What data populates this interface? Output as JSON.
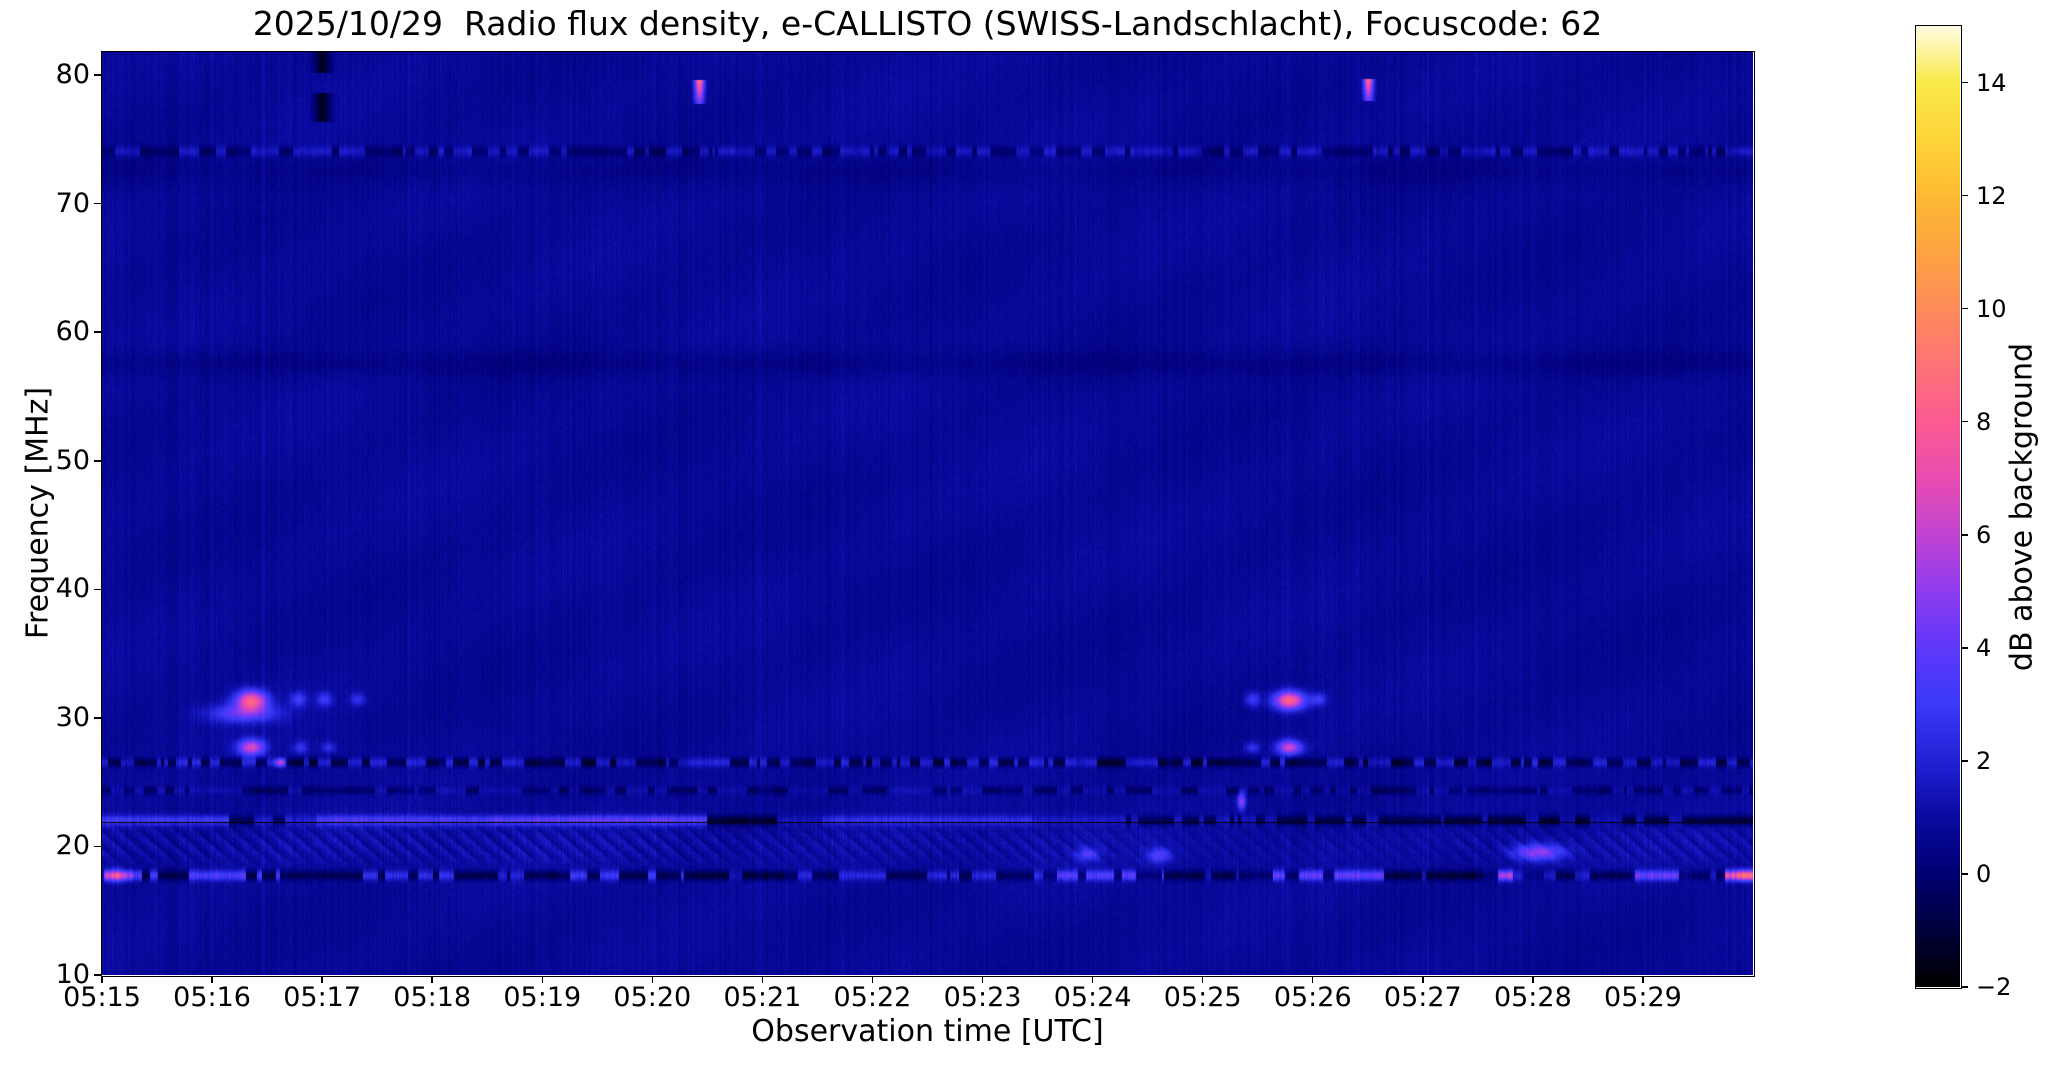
{
  "title": "2025/10/29  Radio flux density, e-CALLISTO (SWISS-Landschlacht), Focuscode: 62",
  "chart_data": {
    "type": "heatmap",
    "title": "2025/10/29  Radio flux density, e-CALLISTO (SWISS-Landschlacht), Focuscode: 62",
    "xlabel": "Observation time [UTC]",
    "ylabel": "Frequency [MHz]",
    "colorbar_label": "dB above background",
    "x_ticks": [
      "05:15",
      "05:16",
      "05:17",
      "05:18",
      "05:19",
      "05:20",
      "05:21",
      "05:22",
      "05:23",
      "05:24",
      "05:25",
      "05:26",
      "05:27",
      "05:28",
      "05:29"
    ],
    "x_range_minutes": [
      0,
      15
    ],
    "x_start_time": "05:15",
    "y_ticks": [
      80,
      70,
      60,
      50,
      40,
      30,
      20,
      10
    ],
    "y_range_mhz": [
      10,
      81.8
    ],
    "colorbar_ticks": [
      14,
      12,
      10,
      8,
      6,
      4,
      2,
      0,
      -2
    ],
    "colorbar_range_db": [
      -2,
      15
    ],
    "grid": false,
    "legend": "colorbar-right",
    "colormap_stops": [
      [
        -2,
        "#000000"
      ],
      [
        -1,
        "#00003c"
      ],
      [
        0,
        "#000074"
      ],
      [
        1,
        "#0b0ba2"
      ],
      [
        2,
        "#2222d6"
      ],
      [
        3,
        "#3a3af8"
      ],
      [
        4,
        "#6038fa"
      ],
      [
        5,
        "#8f3cf0"
      ],
      [
        6,
        "#c244d2"
      ],
      [
        7,
        "#e94cb0"
      ],
      [
        8,
        "#fb5b92"
      ],
      [
        9,
        "#fd7376"
      ],
      [
        10,
        "#fd8c5a"
      ],
      [
        11,
        "#fda342"
      ],
      [
        12,
        "#fdba32"
      ],
      [
        13,
        "#fdd438"
      ],
      [
        14,
        "#f9ea4a"
      ],
      [
        15,
        "#fffbe2"
      ]
    ],
    "background_db": {
      "column_base": 0.55,
      "column_spread": 0.5,
      "pixel_noise": 0.5
    },
    "notable_features": [
      "Bright narrow emission spike ~78-79 MHz at 05:20.4 (~9 dB, pink)",
      "Bright narrow emission spike ~78-79 MHz at 05:26.5 (~9 dB, pink)",
      "Interference blobs at 31.4 MHz and 27.7 MHz near 05:16.3 (~7-8 dB)",
      "Interference blobs at 31.4 MHz and 27.7 MHz near 05:25.8 (~7-8 dB)",
      "Dark dropout column near 05:17 above 76 MHz (~-2 dB)",
      "Bright drifting carrier line at ~22 MHz from 05:15 to 05:20.5, dark dashed 05:24-05:30",
      "Busy dashed RFI band at ~17.8 MHz across whole record, brightest pink at far right ~05:29.9",
      "Dashed texture band at ~74 MHz across whole record",
      "Diagonal chevron fading pattern between 18.4 and 21.9 MHz"
    ],
    "features": {
      "bands": [
        {
          "f": 74.1,
          "h": 0.5,
          "style": "dash",
          "bright": 0.9,
          "dark": -0.9
        },
        {
          "f": 72.6,
          "h": 1.4,
          "style": "smooth",
          "amp": -0.3
        },
        {
          "f": 57.6,
          "h": 1.3,
          "style": "smooth",
          "amp": -0.4
        },
        {
          "f": 26.6,
          "h": 0.45,
          "style": "dash",
          "bright": 1.1,
          "dark": -1.6
        },
        {
          "f": 24.4,
          "h": 0.4,
          "style": "dash",
          "bright": 0.4,
          "dark": -1.0
        },
        {
          "f": 20.0,
          "h": 3.5,
          "style": "smooth",
          "amp": 0.22
        }
      ],
      "chevrons": {
        "f_top": 21.9,
        "f_bot": 18.4,
        "spacing_px": 19,
        "slope": 1.15,
        "regions": [
          {
            "t0": 0,
            "t1": 5.6,
            "amp": 0.5
          },
          {
            "t0": 5.6,
            "t1": 9.2,
            "amp": 0.38
          },
          {
            "t0": 9.2,
            "t1": 12.3,
            "amp": 0.22
          },
          {
            "t0": 12.3,
            "t1": 15,
            "amp": 0.4
          }
        ]
      },
      "lines": [
        {
          "f": 22.05,
          "h": 0.5,
          "segments": [
            {
              "t0": 0.0,
              "t1": 1.15,
              "v": 2.4,
              "style": "solid"
            },
            {
              "t0": 1.15,
              "t1": 1.95,
              "v": 1.0,
              "style": "dashmix",
              "dark": -1.2
            },
            {
              "t0": 1.95,
              "t1": 3.55,
              "v": 2.6,
              "style": "solid"
            },
            {
              "t0": 3.55,
              "t1": 5.5,
              "v": 3.0,
              "style": "solid"
            },
            {
              "t0": 5.5,
              "t1": 6.15,
              "v": -1.8,
              "style": "dashdark",
              "bright": 0.5
            },
            {
              "t0": 6.15,
              "t1": 6.55,
              "v": 0.7,
              "style": "solid"
            },
            {
              "t0": 6.55,
              "t1": 8.45,
              "v": 1.6,
              "style": "solid"
            },
            {
              "t0": 8.45,
              "t1": 9.3,
              "v": 0.8,
              "style": "solid"
            },
            {
              "t0": 9.3,
              "t1": 12.2,
              "v": -1.5,
              "style": "dashdark",
              "bright": 0.6
            },
            {
              "t0": 12.2,
              "t1": 15.0,
              "v": -1.9,
              "style": "dashdark",
              "bright": 0.3
            }
          ]
        },
        {
          "f": 17.75,
          "h": 0.5,
          "segments": [
            {
              "t0": 0.02,
              "t1": 0.28,
              "v": 4.5,
              "style": "solid"
            },
            {
              "t0": 0.28,
              "t1": 1.65,
              "v": 2.6,
              "style": "dashmix",
              "dark": -1.6
            },
            {
              "t0": 1.65,
              "t1": 3.2,
              "v": 1.7,
              "style": "dashmix",
              "dark": -1.4
            },
            {
              "t0": 3.2,
              "t1": 4.15,
              "v": -1.7,
              "style": "dashdark",
              "bright": 0.9
            },
            {
              "t0": 4.15,
              "t1": 5.35,
              "v": 2.0,
              "style": "dashmix",
              "dark": -1.5
            },
            {
              "t0": 5.35,
              "t1": 6.2,
              "v": -1.8,
              "style": "dashdark",
              "bright": 0.4
            },
            {
              "t0": 6.2,
              "t1": 8.55,
              "v": 1.4,
              "style": "dashmix",
              "dark": -1.3
            },
            {
              "t0": 8.55,
              "t1": 9.65,
              "v": 2.8,
              "style": "dashmix",
              "dark": -0.8
            },
            {
              "t0": 9.65,
              "t1": 10.35,
              "v": -1.6,
              "style": "dashdark",
              "bright": 0.5
            },
            {
              "t0": 10.35,
              "t1": 11.65,
              "v": 3.1,
              "style": "dashmix",
              "dark": -1.0
            },
            {
              "t0": 11.65,
              "t1": 12.55,
              "v": -1.7,
              "style": "dashdark",
              "bright": 0.6
            },
            {
              "t0": 12.55,
              "t1": 13.1,
              "v": 4.4,
              "style": "dashmix",
              "dark": -0.5
            },
            {
              "t0": 13.1,
              "t1": 13.9,
              "v": -1.5,
              "style": "dashdark",
              "bright": 0.8
            },
            {
              "t0": 13.9,
              "t1": 14.45,
              "v": 3.3,
              "style": "dashmix",
              "dark": -0.6
            },
            {
              "t0": 14.45,
              "t1": 14.75,
              "v": -1.2,
              "style": "dashdark",
              "bright": 0.6
            },
            {
              "t0": 14.75,
              "t1": 15.0,
              "v": 6.0,
              "style": "solid"
            }
          ]
        }
      ],
      "blobs": [
        {
          "t": 1.35,
          "f": 31.4,
          "v": 7.2,
          "rt": 0.1,
          "rf": 0.55
        },
        {
          "t": 1.35,
          "f": 27.7,
          "v": 5.8,
          "rt": 0.085,
          "rf": 0.45
        },
        {
          "t": 1.28,
          "f": 30.35,
          "v": 3.2,
          "rt": 0.22,
          "rf": 0.5
        },
        {
          "t": 1.78,
          "f": 31.45,
          "v": 2.4,
          "rt": 0.05,
          "rf": 0.4
        },
        {
          "t": 2.02,
          "f": 31.45,
          "v": 2.2,
          "rt": 0.05,
          "rf": 0.4
        },
        {
          "t": 2.32,
          "f": 31.45,
          "v": 1.9,
          "rt": 0.05,
          "rf": 0.35
        },
        {
          "t": 1.8,
          "f": 27.7,
          "v": 1.9,
          "rt": 0.05,
          "rf": 0.35
        },
        {
          "t": 2.05,
          "f": 27.7,
          "v": 1.7,
          "rt": 0.05,
          "rf": 0.3
        },
        {
          "t": 1.62,
          "f": 26.55,
          "v": 4.5,
          "rt": 0.035,
          "rf": 0.22
        },
        {
          "t": 10.78,
          "f": 31.4,
          "v": 7.6,
          "rt": 0.1,
          "rf": 0.5
        },
        {
          "t": 10.78,
          "f": 27.7,
          "v": 5.5,
          "rt": 0.08,
          "rf": 0.4
        },
        {
          "t": 10.45,
          "f": 31.45,
          "v": 2.4,
          "rt": 0.05,
          "rf": 0.4
        },
        {
          "t": 11.05,
          "f": 31.45,
          "v": 2.2,
          "rt": 0.05,
          "rf": 0.35
        },
        {
          "t": 10.45,
          "f": 27.7,
          "v": 1.9,
          "rt": 0.05,
          "rf": 0.3
        },
        {
          "t": 8.95,
          "f": 19.45,
          "v": 2.4,
          "rt": 0.07,
          "rf": 0.35
        },
        {
          "t": 9.6,
          "f": 19.3,
          "v": 2.8,
          "rt": 0.07,
          "rf": 0.4
        },
        {
          "t": 13.05,
          "f": 19.55,
          "v": 4.2,
          "rt": 0.16,
          "rf": 0.45
        },
        {
          "t": 10.35,
          "f": 23.55,
          "v": 4.4,
          "rt": 0.025,
          "rf": 0.45
        },
        {
          "t": 0.12,
          "f": 17.75,
          "v": 2.5,
          "rt": 0.05,
          "rf": 0.35
        },
        {
          "t": 12.85,
          "f": 17.75,
          "v": 1.8,
          "rt": 0.05,
          "rf": 0.3
        },
        {
          "t": 14.93,
          "f": 17.75,
          "v": 1.8,
          "rt": 0.06,
          "rf": 0.3
        }
      ],
      "hot_bars": [
        {
          "t": 5.42,
          "f_top": 79.6,
          "f_bot": 77.8,
          "v": 8.2,
          "w": 0.06
        },
        {
          "t": 11.5,
          "f_top": 79.7,
          "f_bot": 78.0,
          "v": 8.2,
          "w": 0.06
        }
      ],
      "dark_bars": [
        {
          "t": 2.0,
          "w": 0.1,
          "v": -1.6,
          "blocks": [
            [
              81.8,
              80.2
            ],
            [
              78.6,
              76.4
            ]
          ]
        }
      ]
    }
  }
}
